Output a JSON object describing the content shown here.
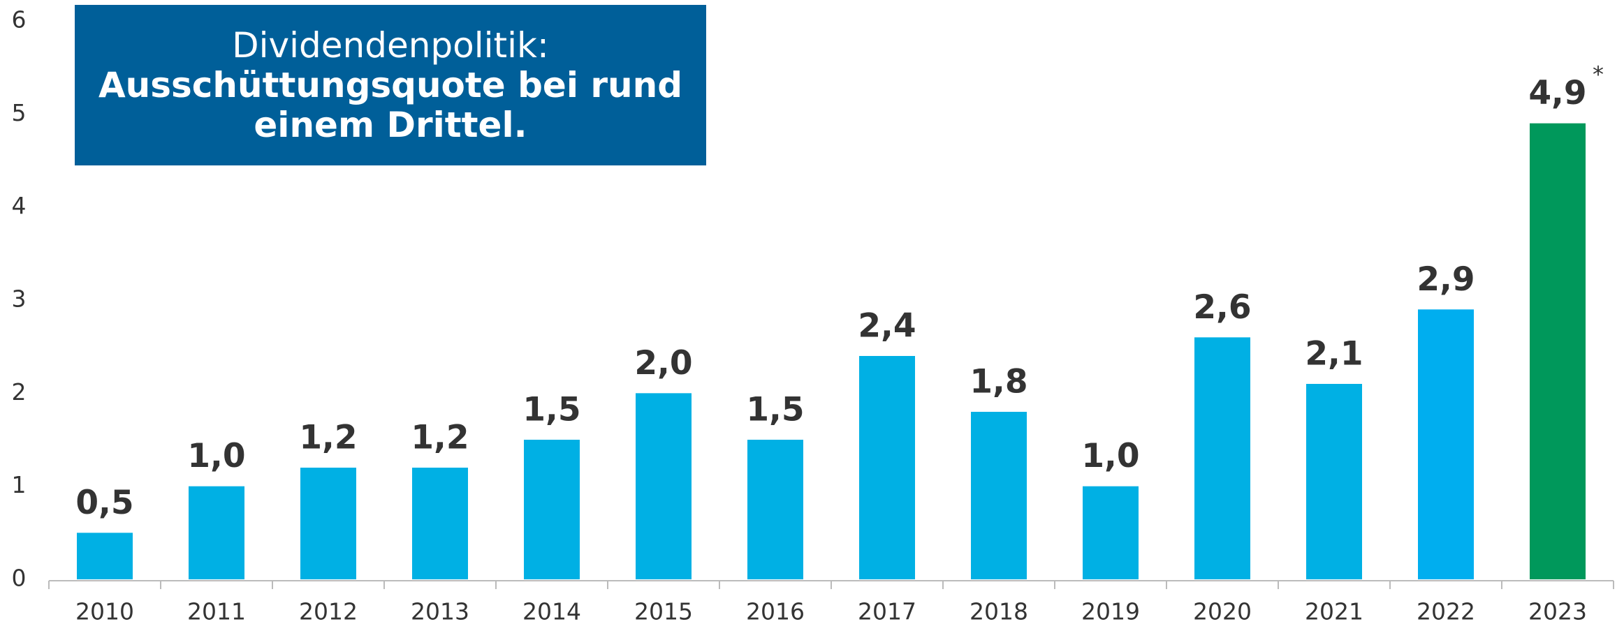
{
  "chart_data": {
    "type": "bar",
    "title": "Dividendenpolitik:",
    "subtitle": "Ausschüttungsquote bei rund einem Drittel.",
    "categories": [
      "2010",
      "2011",
      "2012",
      "2013",
      "2014",
      "2015",
      "2016",
      "2017",
      "2018",
      "2019",
      "2020",
      "2021",
      "2022",
      "2023"
    ],
    "values": [
      0.5,
      1.0,
      1.2,
      1.2,
      1.5,
      2.0,
      1.5,
      2.4,
      1.8,
      1.0,
      2.6,
      2.1,
      2.9,
      4.9
    ],
    "value_labels": [
      "0,5",
      "1,0",
      "1,2",
      "1,2",
      "1,5",
      "2,0",
      "1,5",
      "2,4",
      "1,8",
      "1,0",
      "2,6",
      "2,1",
      "2,9",
      "4,9"
    ],
    "colors": [
      "#00b0e4",
      "#00b0e4",
      "#00b0e4",
      "#00b0e4",
      "#00b0e4",
      "#00b0e4",
      "#00b0e4",
      "#00b0e4",
      "#00b0e4",
      "#00b0e4",
      "#00b0e4",
      "#00b0e4",
      "#00aeef",
      "#00985b"
    ],
    "annotations": [
      "*"
    ],
    "ylim": [
      0,
      6
    ],
    "yticks": [
      0,
      1,
      2,
      3,
      4,
      5,
      6
    ],
    "grid": false
  }
}
